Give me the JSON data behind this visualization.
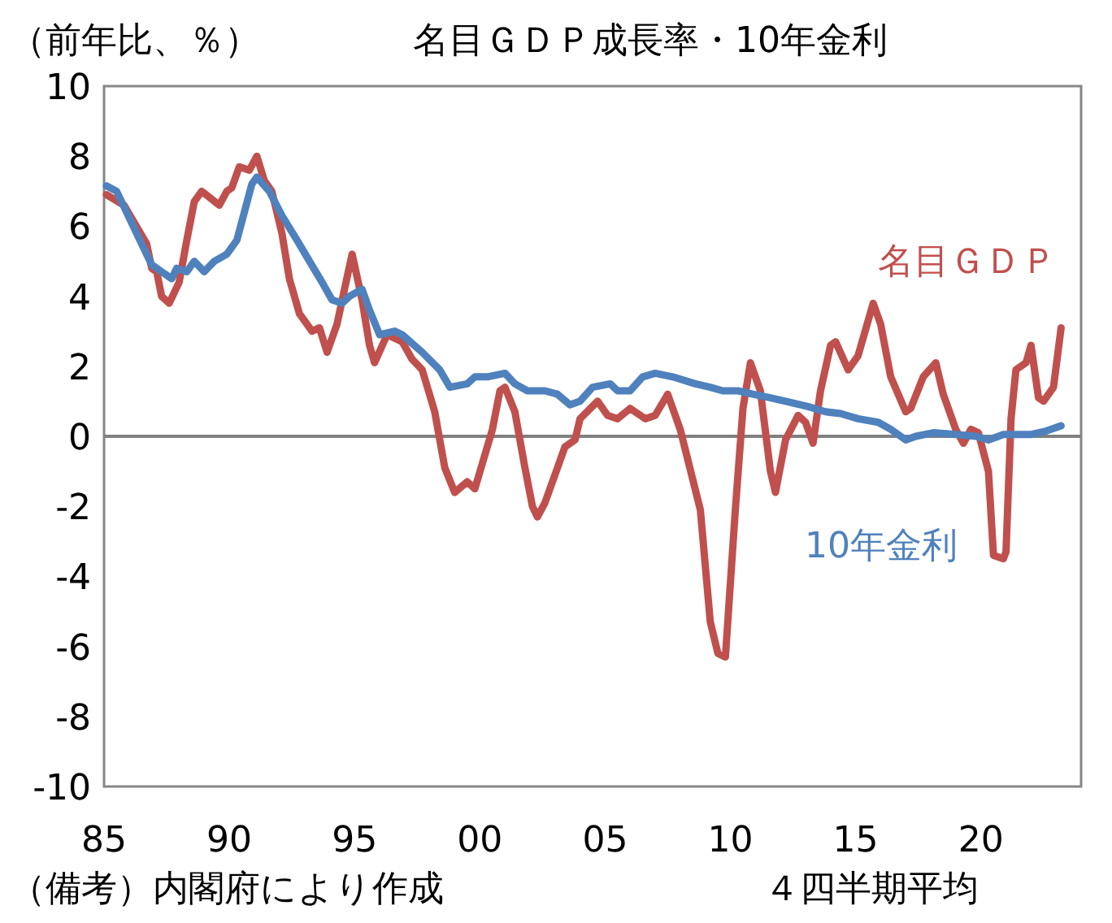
{
  "chart_data": {
    "type": "line",
    "title": "名目ＧＤＰ成長率・10年金利",
    "ylabel": "（前年比、％）",
    "annotations": [
      "（備考）内閣府により作成",
      "４四半期平均"
    ],
    "xlim": [
      1985,
      2024
    ],
    "ylim": [
      -10,
      10
    ],
    "xticks": [
      {
        "value": 1985,
        "label": "85"
      },
      {
        "value": 1990,
        "label": "90"
      },
      {
        "value": 1995,
        "label": "95"
      },
      {
        "value": 2000,
        "label": "00"
      },
      {
        "value": 2005,
        "label": "05"
      },
      {
        "value": 2010,
        "label": "10"
      },
      {
        "value": 2015,
        "label": "15"
      },
      {
        "value": 2020,
        "label": "20"
      }
    ],
    "yticks": [
      -10,
      -8,
      -6,
      -4,
      -2,
      0,
      2,
      4,
      6,
      8,
      10
    ],
    "ref_lines": [
      {
        "axis": "y",
        "value": 0,
        "color": "#808080"
      }
    ],
    "grid": false,
    "legend": false,
    "marker": "none",
    "line_style": "solid",
    "series": [
      {
        "name": "名目ＧＤＰ",
        "color": "#c0504d",
        "x": [
          1985.1,
          1985.8,
          1986.7,
          1986.9,
          1987.1,
          1987.3,
          1987.6,
          1988.0,
          1988.3,
          1988.6,
          1988.9,
          1989.6,
          1989.9,
          1990.1,
          1990.4,
          1990.8,
          1991.1,
          1991.4,
          1991.7,
          1992.1,
          1992.4,
          1992.8,
          1993.3,
          1993.6,
          1993.9,
          1994.3,
          1994.6,
          1994.9,
          1995.3,
          1995.6,
          1995.8,
          1996.3,
          1996.9,
          1997.3,
          1997.7,
          1998.2,
          1998.6,
          1999.0,
          1999.5,
          1999.8,
          2000.5,
          2000.8,
          2001.0,
          2001.4,
          2001.8,
          2002.1,
          2002.3,
          2002.6,
          2003.1,
          2003.4,
          2003.8,
          2004.0,
          2004.7,
          2005.1,
          2005.5,
          2006.0,
          2006.6,
          2007.0,
          2007.5,
          2008.0,
          2008.8,
          2009.2,
          2009.5,
          2009.8,
          2010.2,
          2010.5,
          2010.8,
          2011.2,
          2011.6,
          2011.8,
          2012.2,
          2012.7,
          2013.0,
          2013.3,
          2013.6,
          2014.0,
          2014.2,
          2014.7,
          2015.1,
          2015.7,
          2016.0,
          2016.4,
          2017.0,
          2017.2,
          2017.7,
          2018.2,
          2018.5,
          2019.0,
          2019.3,
          2019.6,
          2019.9,
          2020.3,
          2020.5,
          2020.9,
          2021.0,
          2021.2,
          2021.4,
          2021.8,
          2022.0,
          2022.3,
          2022.5,
          2022.9,
          2023.2
        ],
        "values": [
          6.9,
          6.6,
          5.5,
          4.8,
          4.7,
          4.0,
          3.8,
          4.4,
          5.6,
          6.7,
          7.0,
          6.6,
          7.0,
          7.1,
          7.7,
          7.6,
          8.0,
          7.3,
          7.0,
          5.8,
          4.5,
          3.5,
          3.0,
          3.1,
          2.4,
          3.2,
          4.2,
          5.2,
          3.9,
          2.6,
          2.1,
          2.9,
          2.7,
          2.2,
          1.9,
          0.7,
          -0.9,
          -1.6,
          -1.3,
          -1.5,
          0.2,
          1.3,
          1.4,
          0.7,
          -0.9,
          -2.0,
          -2.3,
          -1.9,
          -0.9,
          -0.3,
          -0.1,
          0.5,
          1.0,
          0.6,
          0.5,
          0.8,
          0.5,
          0.6,
          1.2,
          0.2,
          -2.1,
          -5.3,
          -6.2,
          -6.3,
          -2.1,
          0.8,
          2.1,
          1.3,
          -1.0,
          -1.6,
          -0.1,
          0.6,
          0.4,
          -0.2,
          1.3,
          2.6,
          2.7,
          1.9,
          2.3,
          3.8,
          3.2,
          1.7,
          0.7,
          0.8,
          1.7,
          2.1,
          1.2,
          0.2,
          -0.2,
          0.2,
          0.1,
          -1.0,
          -3.4,
          -3.5,
          -3.3,
          0.5,
          1.9,
          2.1,
          2.6,
          1.1,
          1.0,
          1.4,
          3.1
        ]
      },
      {
        "name": "10年金利",
        "color": "#4f81bd",
        "x": [
          1985.1,
          1985.5,
          1985.9,
          1986.5,
          1986.9,
          1987.3,
          1987.7,
          1987.9,
          1988.3,
          1988.6,
          1989.0,
          1989.4,
          1989.9,
          1990.3,
          1990.6,
          1990.9,
          1991.1,
          1991.6,
          1992.1,
          1992.7,
          1993.2,
          1993.7,
          1994.1,
          1994.5,
          1994.8,
          1995.3,
          1995.6,
          1996.0,
          1996.6,
          1996.9,
          1997.7,
          1998.4,
          1998.8,
          1999.5,
          1999.8,
          2000.3,
          2001.0,
          2001.4,
          2001.9,
          2002.6,
          2003.1,
          2003.6,
          2004.0,
          2004.5,
          2005.2,
          2005.5,
          2006.0,
          2006.5,
          2007.0,
          2007.7,
          2008.6,
          2009.2,
          2009.7,
          2010.3,
          2010.9,
          2011.6,
          2012.2,
          2013.1,
          2013.8,
          2014.4,
          2015.1,
          2015.9,
          2016.4,
          2017.0,
          2017.4,
          2018.1,
          2019.0,
          2019.8,
          2020.3,
          2020.9,
          2022.0,
          2022.6,
          2023.2
        ],
        "values": [
          7.15,
          7.0,
          6.4,
          5.5,
          4.9,
          4.7,
          4.5,
          4.8,
          4.7,
          5.0,
          4.7,
          5.0,
          5.2,
          5.6,
          6.4,
          7.2,
          7.4,
          7.0,
          6.3,
          5.6,
          5.0,
          4.4,
          3.9,
          3.8,
          4.0,
          4.2,
          3.6,
          2.9,
          3.0,
          2.9,
          2.4,
          1.9,
          1.4,
          1.5,
          1.7,
          1.7,
          1.8,
          1.5,
          1.3,
          1.3,
          1.2,
          0.9,
          1.0,
          1.4,
          1.5,
          1.3,
          1.3,
          1.7,
          1.8,
          1.7,
          1.5,
          1.4,
          1.3,
          1.3,
          1.2,
          1.1,
          1.0,
          0.85,
          0.7,
          0.65,
          0.5,
          0.4,
          0.2,
          -0.1,
          0.0,
          0.1,
          0.05,
          0.0,
          -0.1,
          0.05,
          0.05,
          0.15,
          0.3
        ]
      }
    ]
  }
}
